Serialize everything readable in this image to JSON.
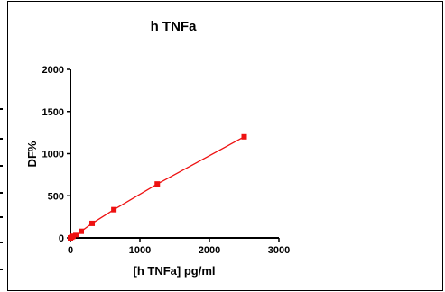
{
  "chart_data": {
    "type": "line",
    "title": "h TNFa",
    "xlabel": "[h TNFa] pg/ml",
    "ylabel": "DF%",
    "xlim": [
      0,
      3000
    ],
    "ylim": [
      0,
      2000
    ],
    "xticks": [
      "0",
      "1000",
      "2000",
      "3000"
    ],
    "yticks": [
      "0",
      "500",
      "1000",
      "1500",
      "2000"
    ],
    "grid": false,
    "legend": "none",
    "series": [
      {
        "color": "#ee1111",
        "marker": "square",
        "x": [
          0,
          19.5,
          39,
          78,
          156,
          312,
          625,
          1250,
          2500
        ],
        "y": [
          0,
          9,
          19,
          39,
          78,
          172,
          335,
          640,
          1200
        ]
      }
    ]
  }
}
